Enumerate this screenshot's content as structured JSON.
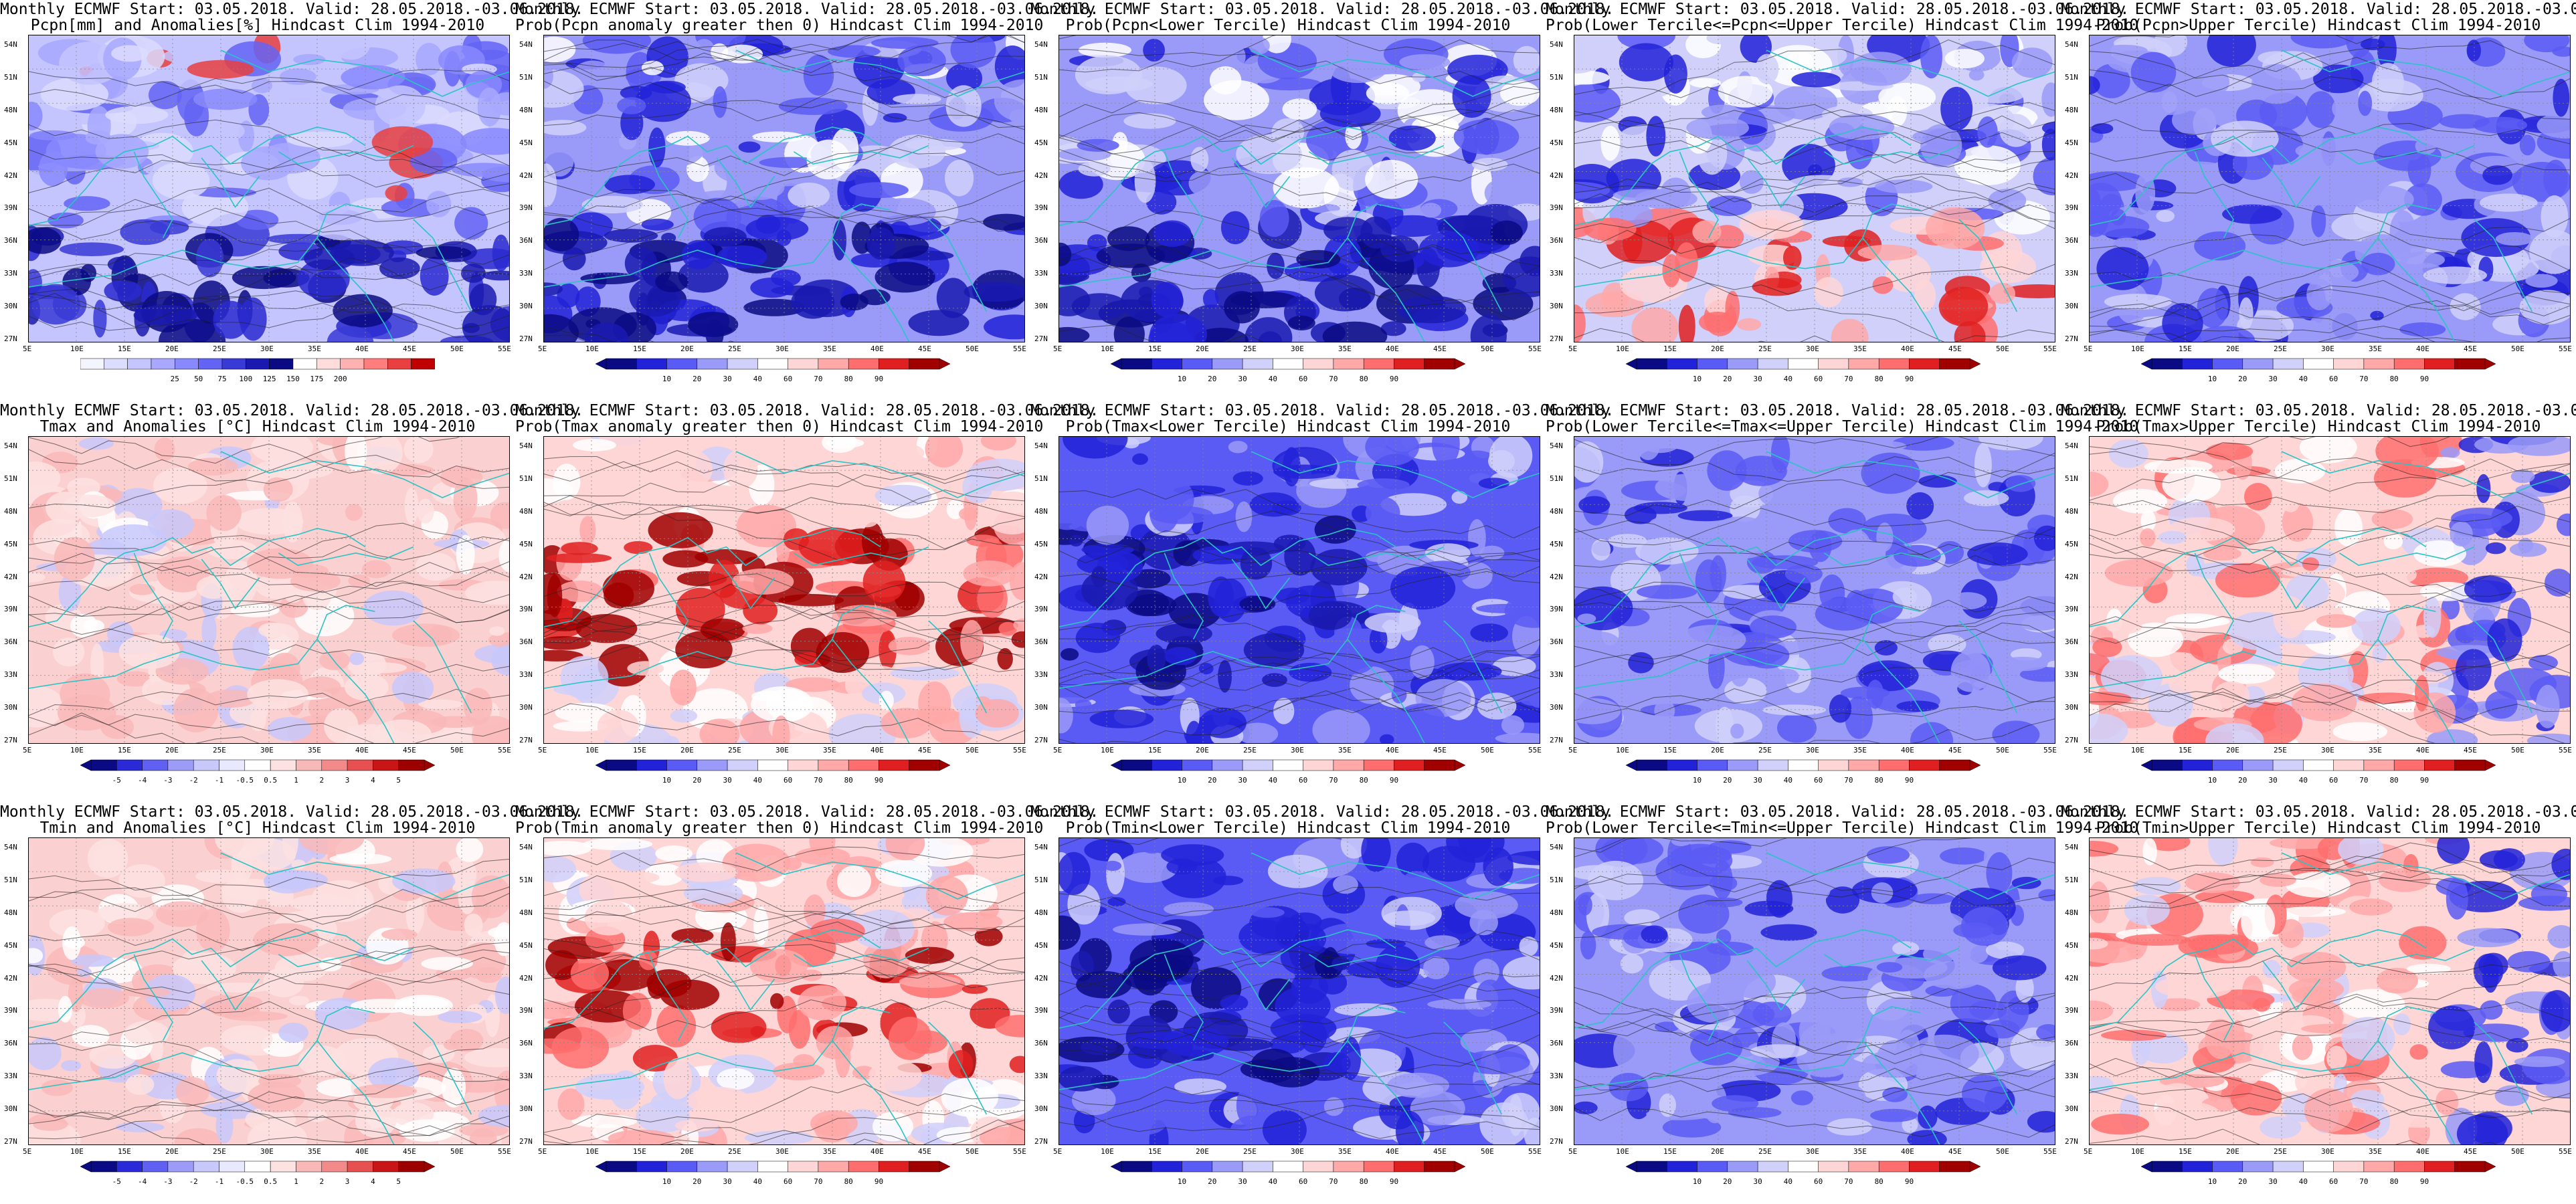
{
  "header_line_1": "Monthly ECMWF Start: 03.05.2018. Valid: 28.05.2018.-03.06.2018.",
  "lat_ticks": [
    "54N",
    "51N",
    "48N",
    "45N",
    "42N",
    "39N",
    "36N",
    "33N",
    "30N",
    "27N"
  ],
  "lon_ticks": [
    "5E",
    "10E",
    "15E",
    "20E",
    "25E",
    "30E",
    "35E",
    "40E",
    "45E",
    "50E",
    "55E"
  ],
  "colors": {
    "coast": "#2ac4c4",
    "contour": "#222222",
    "ocean_base": "#ffffff"
  },
  "colorbars": {
    "pcpn_anom": {
      "colors": [
        "#f4f4ff",
        "#dcdcff",
        "#c4c4ff",
        "#a8a8ff",
        "#8888ff",
        "#6464f4",
        "#3a3ad6",
        "#1a1ab0",
        "#0a0a84",
        "#ffffff",
        "#ffdcdc",
        "#ffb0b0",
        "#ff7d7d",
        "#e84040",
        "#c00000"
      ],
      "labels": [
        "25",
        "50",
        "75",
        "100",
        "125",
        "150",
        "175",
        "200"
      ],
      "triangles": false
    },
    "prob": {
      "colors": [
        "#0a0a84",
        "#2222d8",
        "#5a5af4",
        "#9a9af8",
        "#d0d0fa",
        "#ffffff",
        "#ffd6d6",
        "#ffa8a8",
        "#ff6e6e",
        "#e02020",
        "#a00000"
      ],
      "labels": [
        "10",
        "20",
        "30",
        "40",
        "60",
        "70",
        "80",
        "90"
      ],
      "triangles": true
    },
    "temp_anom": {
      "colors": [
        "#0a0a84",
        "#2a2ad8",
        "#6060f2",
        "#9c9cf8",
        "#c8c8fb",
        "#e8e8fe",
        "#ffffff",
        "#fde2e2",
        "#f9b8b8",
        "#f38a8a",
        "#e65050",
        "#c81616",
        "#9c0000"
      ],
      "labels": [
        "-5",
        "-4",
        "-3",
        "-2",
        "-1",
        "-0.5",
        "0.5",
        "1",
        "2",
        "3",
        "4",
        "5"
      ],
      "triangles": true
    }
  },
  "panels": [
    {
      "title": "Pcpn[mm] and Anomalies[%] Hindcast Clim 1994-2010",
      "variable": "precipitation",
      "stat": "anomaly",
      "colorbar": "pcpn_anom",
      "palette": "pcpn"
    },
    {
      "title": "Prob(Pcpn anomaly greater then 0) Hindcast Clim 1994-2010",
      "variable": "precipitation",
      "stat": "prob_gt0",
      "colorbar": "prob",
      "palette": "blue_dominant"
    },
    {
      "title": "Prob(Pcpn<Lower Tercile) Hindcast Clim 1994-2010",
      "variable": "precipitation",
      "stat": "prob_lower",
      "colorbar": "prob",
      "palette": "blue_dominant"
    },
    {
      "title": "Prob(Lower Tercile<=Pcpn<=Upper Tercile) Hindcast Clim 1994-2010",
      "variable": "precipitation",
      "stat": "prob_middle",
      "colorbar": "prob",
      "palette": "mixed_red_south"
    },
    {
      "title": "Prob(Pcpn>Upper Tercile) Hindcast Clim 1994-2010",
      "variable": "precipitation",
      "stat": "prob_upper",
      "colorbar": "prob",
      "palette": "blue_mid"
    },
    {
      "title": "Tmax and Anomalies [°C] Hindcast Clim 1994-2010",
      "variable": "tmax",
      "stat": "anomaly",
      "colorbar": "temp_anom",
      "palette": "pink_light"
    },
    {
      "title": "Prob(Tmax anomaly greater then 0) Hindcast Clim 1994-2010",
      "variable": "tmax",
      "stat": "prob_gt0",
      "colorbar": "prob",
      "palette": "red_strong"
    },
    {
      "title": "Prob(Tmax<Lower Tercile) Hindcast Clim 1994-2010",
      "variable": "tmax",
      "stat": "prob_lower",
      "colorbar": "prob",
      "palette": "blue_strong"
    },
    {
      "title": "Prob(Lower Tercile<=Tmax<=Upper Tercile) Hindcast Clim 1994-2010",
      "variable": "tmax",
      "stat": "prob_middle",
      "colorbar": "prob",
      "palette": "blue_mid"
    },
    {
      "title": "Prob(Tmax>Upper Tercile) Hindcast Clim 1994-2010",
      "variable": "tmax",
      "stat": "prob_upper",
      "colorbar": "prob",
      "palette": "pink_mixed"
    },
    {
      "title": "Tmin and Anomalies [°C] Hindcast Clim 1994-2010",
      "variable": "tmin",
      "stat": "anomaly",
      "colorbar": "temp_anom",
      "palette": "pink_light"
    },
    {
      "title": "Prob(Tmin anomaly greater then 0) Hindcast Clim 1994-2010",
      "variable": "tmin",
      "stat": "prob_gt0",
      "colorbar": "prob",
      "palette": "red_strong"
    },
    {
      "title": "Prob(Tmin<Lower Tercile) Hindcast Clim 1994-2010",
      "variable": "tmin",
      "stat": "prob_lower",
      "colorbar": "prob",
      "palette": "blue_strong"
    },
    {
      "title": "Prob(Lower Tercile<=Tmin<=Upper Tercile) Hindcast Clim 1994-2010",
      "variable": "tmin",
      "stat": "prob_middle",
      "colorbar": "prob",
      "palette": "blue_mid"
    },
    {
      "title": "Prob(Tmin>Upper Tercile) Hindcast Clim 1994-2010",
      "variable": "tmin",
      "stat": "prob_upper",
      "colorbar": "prob",
      "palette": "pink_mixed"
    }
  ]
}
